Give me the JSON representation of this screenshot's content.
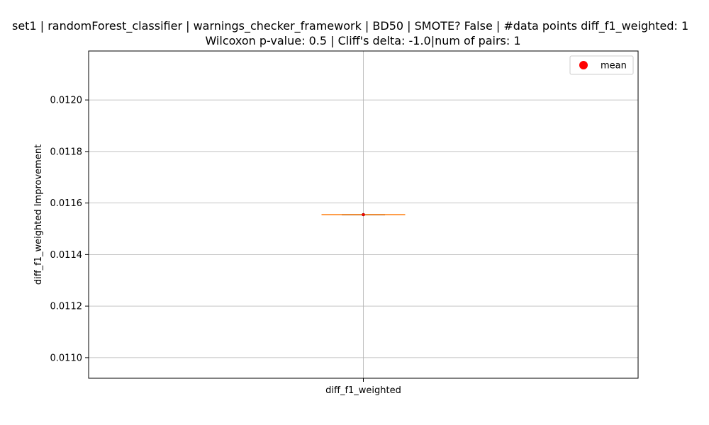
{
  "chart_data": {
    "type": "box",
    "title_line1": "set1 | randomForest_classifier | warnings_checker_framework | BD50 | SMOTE? False | #data points diff_f1_weighted: 1",
    "title_line2": "Wilcoxon p-value: 0.5 | Cliff's delta: -1.0|num of pairs: 1",
    "xlabel": "",
    "ylabel": "diff_f1_weighted Improvement",
    "categories": [
      "diff_f1_weighted"
    ],
    "ylim": [
      0.01092,
      0.01219
    ],
    "yticks": [
      0.011,
      0.0112,
      0.0114,
      0.0116,
      0.0118,
      0.012
    ],
    "ytick_labels": [
      "0.0110",
      "0.0112",
      "0.0114",
      "0.0116",
      "0.0118",
      "0.0120"
    ],
    "grid": true,
    "legend": {
      "position": "top-right",
      "entries": [
        "mean"
      ]
    },
    "series": [
      {
        "category": "diff_f1_weighted",
        "min": 0.011555,
        "q1": 0.011555,
        "median": 0.011555,
        "q3": 0.011555,
        "max": 0.011555,
        "mean": 0.011555
      }
    ],
    "colors": {
      "median": "#ff7f0e",
      "mean": "#ff0000",
      "grid": "#b0b0b0",
      "box": "#000000"
    }
  }
}
